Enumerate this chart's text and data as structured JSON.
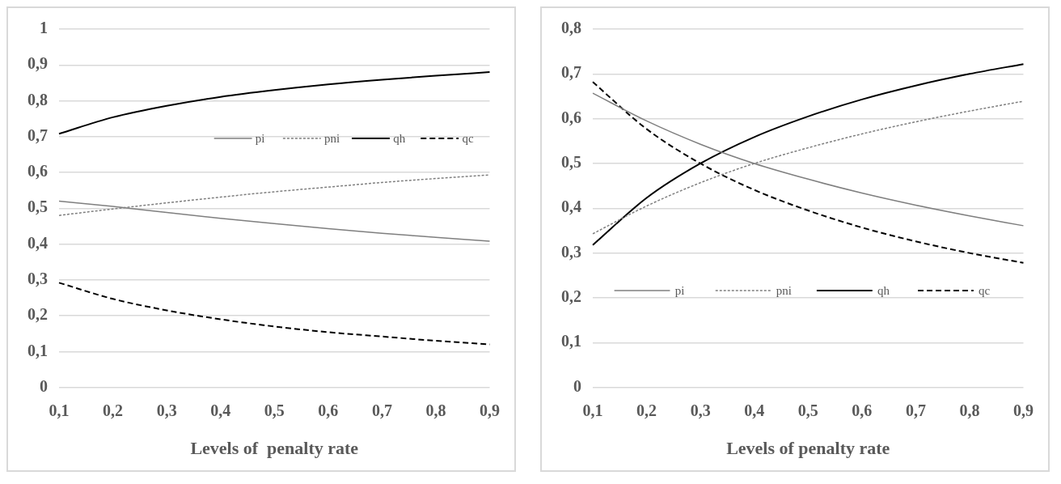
{
  "chart_data": [
    {
      "type": "line",
      "xlabel": "Levels of  penalty rate",
      "categories": [
        "0,1",
        "0,2",
        "0,3",
        "0,4",
        "0,5",
        "0,6",
        "0,7",
        "0,8",
        "0,9"
      ],
      "series": [
        {
          "name": "pi",
          "color": "#7f7f7f",
          "line_style": "solid",
          "values": [
            0.52,
            0.505,
            0.488,
            0.472,
            0.457,
            0.443,
            0.43,
            0.419,
            0.408
          ]
        },
        {
          "name": "pni",
          "color": "#7f7f7f",
          "line_style": "dotted",
          "values": [
            0.48,
            0.498,
            0.515,
            0.531,
            0.546,
            0.559,
            0.572,
            0.583,
            0.593
          ]
        },
        {
          "name": "qh",
          "color": "#000000",
          "line_style": "solid",
          "values": [
            0.708,
            0.754,
            0.786,
            0.811,
            0.83,
            0.846,
            0.859,
            0.87,
            0.88
          ]
        },
        {
          "name": "qc",
          "color": "#000000",
          "line_style": "dashed",
          "values": [
            0.292,
            0.247,
            0.215,
            0.19,
            0.17,
            0.154,
            0.142,
            0.13,
            0.12
          ]
        }
      ],
      "ylim": [
        0,
        1
      ],
      "yticks": [
        {
          "value": 0,
          "label": "0"
        },
        {
          "value": 0.1,
          "label": "0,1"
        },
        {
          "value": 0.2,
          "label": "0,2"
        },
        {
          "value": 0.3,
          "label": "0,3"
        },
        {
          "value": 0.4,
          "label": "0,4"
        },
        {
          "value": 0.5,
          "label": "0,5"
        },
        {
          "value": 0.6,
          "label": "0,6"
        },
        {
          "value": 0.7,
          "label": "0,7"
        },
        {
          "value": 0.8,
          "label": "0,8"
        },
        {
          "value": 0.9,
          "label": "0,9"
        },
        {
          "value": 1,
          "label": "1"
        }
      ],
      "grid": "y",
      "legend": "right",
      "marker": "none"
    },
    {
      "type": "line",
      "xlabel": "Levels of penalty rate",
      "categories": [
        "0,1",
        "0,2",
        "0,3",
        "0,4",
        "0,5",
        "0,6",
        "0,7",
        "0,8",
        "0,9"
      ],
      "series": [
        {
          "name": "pi",
          "color": "#7f7f7f",
          "line_style": "solid",
          "values": [
            0.657,
            0.595,
            0.543,
            0.5,
            0.465,
            0.434,
            0.407,
            0.383,
            0.361
          ]
        },
        {
          "name": "pni",
          "color": "#7f7f7f",
          "line_style": "dotted",
          "values": [
            0.343,
            0.405,
            0.457,
            0.5,
            0.535,
            0.566,
            0.593,
            0.617,
            0.639
          ]
        },
        {
          "name": "qh",
          "color": "#000000",
          "line_style": "solid",
          "values": [
            0.318,
            0.423,
            0.5,
            0.559,
            0.605,
            0.643,
            0.674,
            0.7,
            0.722
          ]
        },
        {
          "name": "qc",
          "color": "#000000",
          "line_style": "dashed",
          "values": [
            0.682,
            0.577,
            0.5,
            0.441,
            0.395,
            0.357,
            0.326,
            0.3,
            0.278
          ]
        }
      ],
      "ylim": [
        0,
        0.8
      ],
      "yticks": [
        {
          "value": 0,
          "label": "0"
        },
        {
          "value": 0.1,
          "label": "0,1"
        },
        {
          "value": 0.2,
          "label": "0,2"
        },
        {
          "value": 0.3,
          "label": "0,3"
        },
        {
          "value": 0.4,
          "label": "0,4"
        },
        {
          "value": 0.5,
          "label": "0,5"
        },
        {
          "value": 0.6,
          "label": "0,6"
        },
        {
          "value": 0.7,
          "label": "0,7"
        },
        {
          "value": 0.8,
          "label": "0,8"
        }
      ],
      "grid": "y",
      "legend": "bottom",
      "marker": "none"
    }
  ]
}
